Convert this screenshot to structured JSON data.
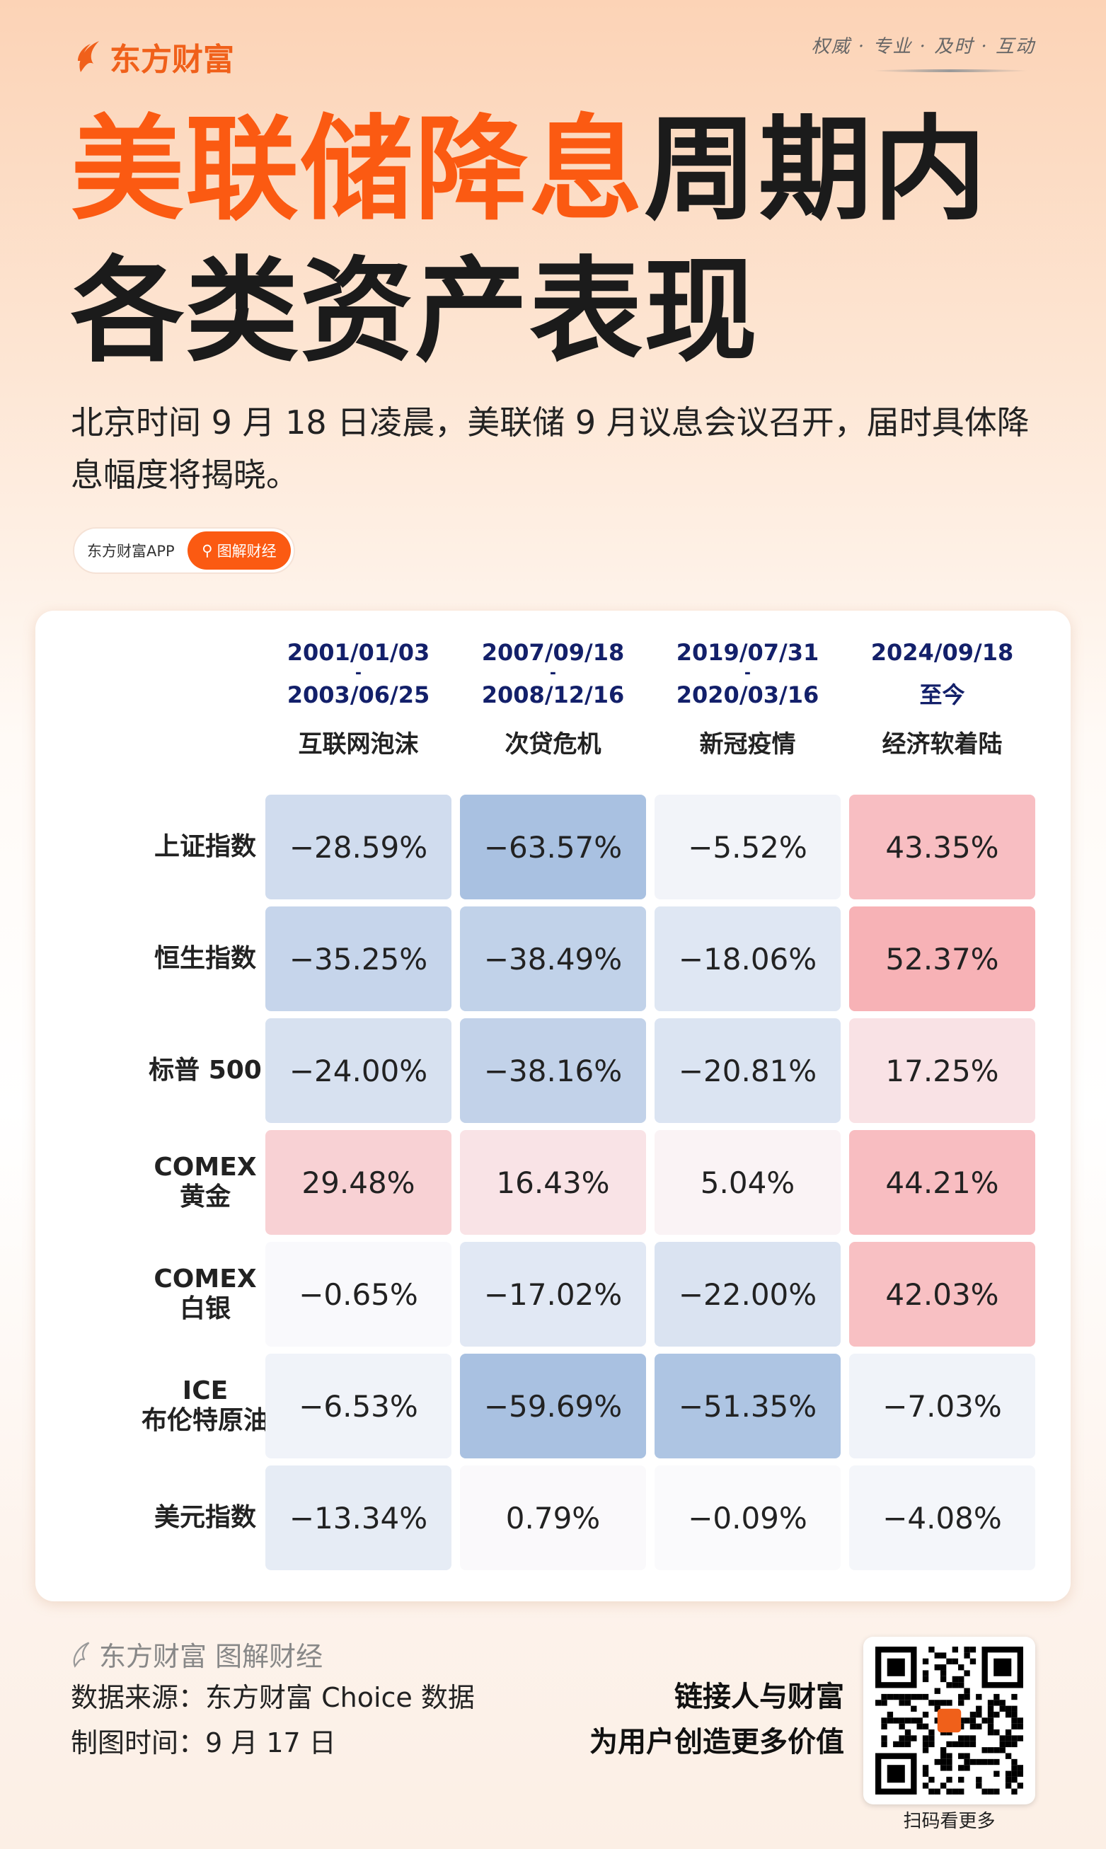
{
  "header": {
    "brand": "东方财富",
    "motto": "权威 · 专业 · 及时 · 互动"
  },
  "title": {
    "highlight": "美联储降息",
    "rest_line1": "周期内",
    "line2": "各类资产表现"
  },
  "subtitle": "北京时间 9 月 18 日凌晨，美联储 9 月议息会议召开，届时具体降息幅度将揭晓。",
  "pill": {
    "app": "东方财富APP",
    "button": "图解财经",
    "icon": "search-icon"
  },
  "table": {
    "columns": [
      {
        "start": "2001/01/03",
        "sep": "-",
        "end": "2003/06/25",
        "name": "互联网泡沫"
      },
      {
        "start": "2007/09/18",
        "sep": "-",
        "end": "2008/12/16",
        "name": "次贷危机"
      },
      {
        "start": "2019/07/31",
        "sep": "-",
        "end": "2020/03/16",
        "name": "新冠疫情"
      },
      {
        "start": "2024/09/18",
        "sep": "",
        "end": "至今",
        "name": "经济软着陆"
      }
    ],
    "rows": [
      {
        "label": [
          "上证指数"
        ],
        "values": [
          "−28.59%",
          "−63.57%",
          "−5.52%",
          "43.35%"
        ],
        "nums": [
          -28.59,
          -63.57,
          -5.52,
          43.35
        ]
      },
      {
        "label": [
          "恒生指数"
        ],
        "values": [
          "−35.25%",
          "−38.49%",
          "−18.06%",
          "52.37%"
        ],
        "nums": [
          -35.25,
          -38.49,
          -18.06,
          52.37
        ]
      },
      {
        "label": [
          "标普 500"
        ],
        "values": [
          "−24.00%",
          "−38.16%",
          "−20.81%",
          "17.25%"
        ],
        "nums": [
          -24.0,
          -38.16,
          -20.81,
          17.25
        ]
      },
      {
        "label": [
          "COMEX",
          "黄金"
        ],
        "values": [
          "29.48%",
          "16.43%",
          "5.04%",
          "44.21%"
        ],
        "nums": [
          29.48,
          16.43,
          5.04,
          44.21
        ]
      },
      {
        "label": [
          "COMEX",
          "白银"
        ],
        "values": [
          "−0.65%",
          "−17.02%",
          "−22.00%",
          "42.03%"
        ],
        "nums": [
          -0.65,
          -17.02,
          -22.0,
          42.03
        ]
      },
      {
        "label": [
          "ICE",
          "布伦特原油"
        ],
        "values": [
          "−6.53%",
          "−59.69%",
          "−51.35%",
          "−7.03%"
        ],
        "nums": [
          -6.53,
          -59.69,
          -51.35,
          -7.03
        ]
      },
      {
        "label": [
          "美元指数"
        ],
        "values": [
          "−13.34%",
          "0.79%",
          "−0.09%",
          "−4.08%"
        ],
        "nums": [
          -13.34,
          0.79,
          -0.09,
          -4.08
        ]
      }
    ],
    "colors": {
      "negative": "#a9c1e1",
      "positive": "#f7aeb2"
    },
    "watermark": "东方财富"
  },
  "footer": {
    "brand": "东方财富 图解财经",
    "source": "数据来源：东方财富 Choice 数据",
    "date": "制图时间：9 月 17 日",
    "slogan1": "链接人与财富",
    "slogan2": "为用户创造更多价值",
    "qr_caption": "扫码看更多"
  },
  "colors": {
    "accent": "#fb5a12",
    "date_text": "#13206a"
  }
}
